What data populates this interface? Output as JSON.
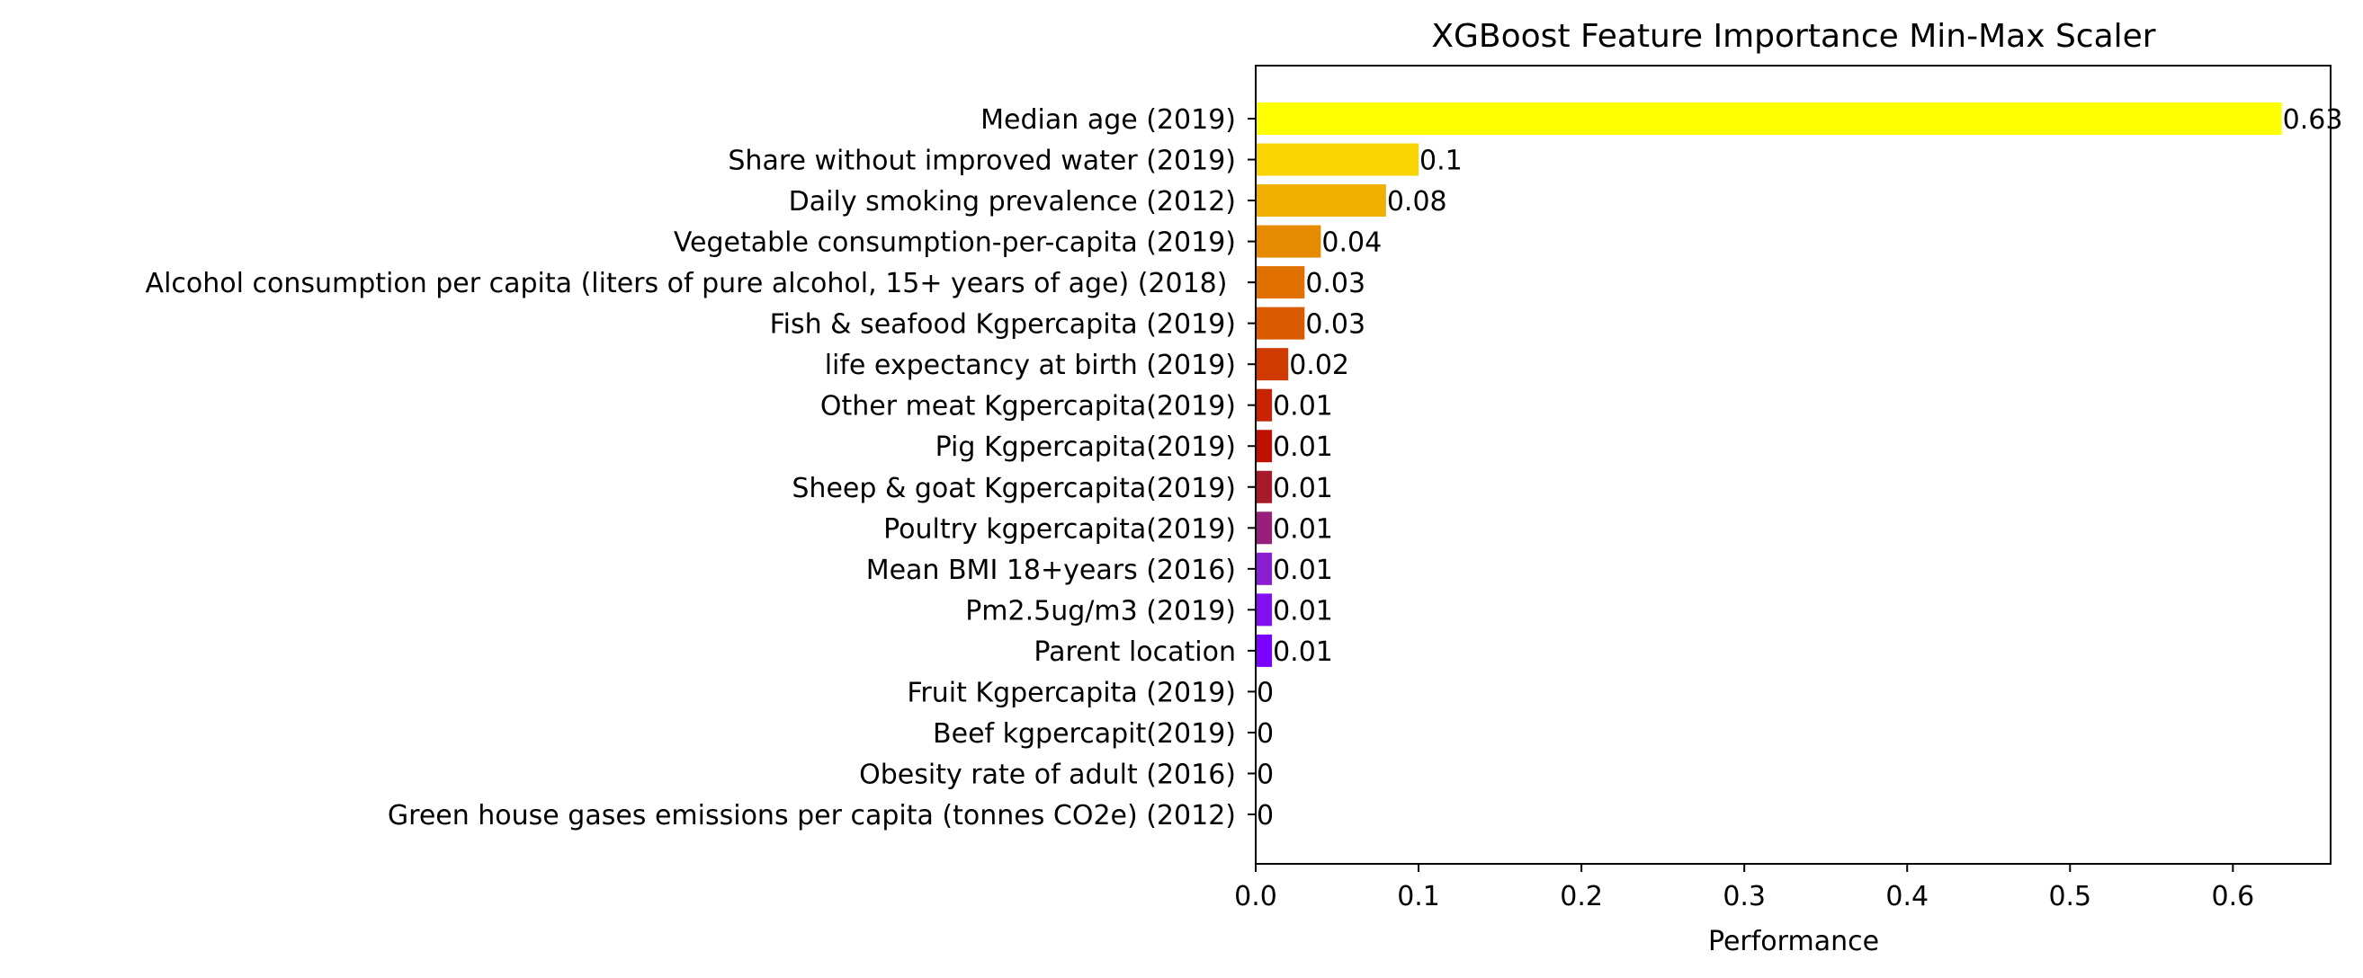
{
  "chart_data": {
    "type": "bar",
    "orientation": "horizontal",
    "title": "XGBoost Feature Importance Min-Max Scaler",
    "xlabel": "Performance",
    "ylabel": "",
    "xlim": [
      0,
      0.66
    ],
    "xticks": [
      0.0,
      0.1,
      0.2,
      0.3,
      0.4,
      0.5,
      0.6
    ],
    "xtick_labels": [
      "0.0",
      "0.1",
      "0.2",
      "0.3",
      "0.4",
      "0.5",
      "0.6"
    ],
    "grid": false,
    "legend": "none",
    "categories": [
      "Median age (2019)",
      "Share without improved water (2019)",
      "Daily smoking prevalence (2012)",
      "Vegetable consumption-per-capita (2019)",
      "Alcohol consumption per capita (liters of pure alcohol, 15+ years of age) (2018) ",
      "Fish & seafood Kgpercapita (2019)",
      "life expectancy at birth (2019)",
      "Other meat Kgpercapita(2019)",
      "Pig Kgpercapita(2019)",
      "Sheep & goat Kgpercapita(2019)",
      "Poultry kgpercapita(2019)",
      "Mean BMI 18+years (2016)",
      "Pm2.5ug/m3 (2019)",
      "Parent location",
      "Fruit Kgpercapita (2019)",
      "Beef kgpercapit(2019)",
      "Obesity rate of adult (2016)",
      "Green house gases emissions per capita (tonnes CO2e) (2012)"
    ],
    "values": [
      0.63,
      0.1,
      0.08,
      0.04,
      0.03,
      0.03,
      0.02,
      0.01,
      0.01,
      0.01,
      0.01,
      0.01,
      0.01,
      0.01,
      0,
      0,
      0,
      0
    ],
    "value_labels": [
      "0.63",
      "0.1",
      "0.08",
      "0.04",
      "0.03",
      "0.03",
      "0.02",
      "0.01",
      "0.01",
      "0.01",
      "0.01",
      "0.01",
      "0.01",
      "0.01",
      "0",
      "0",
      "0",
      "0"
    ],
    "colors": [
      "#ffff00",
      "#f8d500",
      "#f0b000",
      "#e68a00",
      "#e07000",
      "#d95a00",
      "#cf3a00",
      "#c72300",
      "#bd1000",
      "#a51b2a",
      "#96207a",
      "#8a1fd0",
      "#8010f0",
      "#7a00ff",
      "#7a00ff",
      "#7a00ff",
      "#7a00ff",
      "#7a00ff"
    ]
  }
}
